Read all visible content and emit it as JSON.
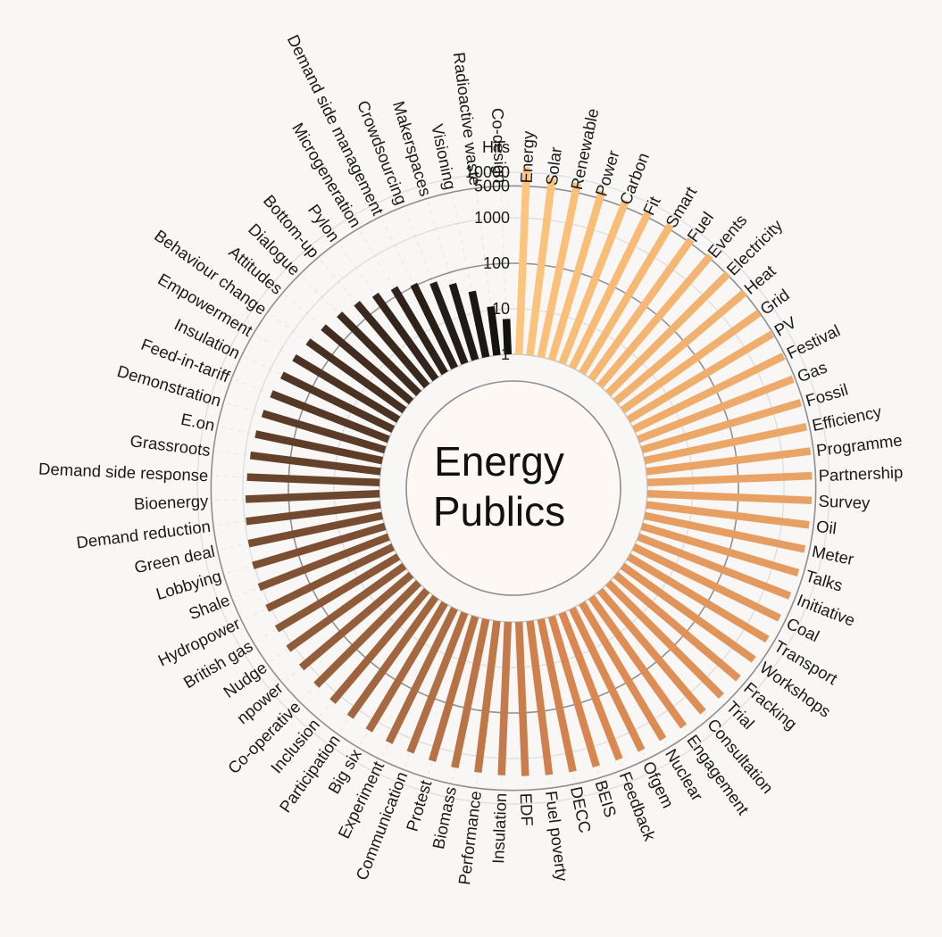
{
  "chart_data": {
    "type": "bar",
    "layout": "radial",
    "title": "Energy Publics",
    "title_lines": [
      "Energy",
      "Publics"
    ],
    "axis_title": "Hits",
    "scale": "log",
    "ylim": [
      1,
      10000
    ],
    "ticks": [
      {
        "value": 1,
        "label": "1"
      },
      {
        "value": 10,
        "label": "10"
      },
      {
        "value": 100,
        "label": "100"
      },
      {
        "value": 1000,
        "label": "1000"
      },
      {
        "value": 5000,
        "label": "5000"
      },
      {
        "value": 10000,
        "label": "10000"
      }
    ],
    "color_start": "#fcc47c",
    "color_mid": "#d98650",
    "color_end": "#111111",
    "categories": [
      "Energy",
      "Solar",
      "Renewable",
      "Power",
      "Carbon",
      "Fit",
      "Smart",
      "Fuel",
      "Events",
      "Electricity",
      "Heat",
      "Grid",
      "PV",
      "Festival",
      "Gas",
      "Fossil",
      "Efficiency",
      "Programme",
      "Partnership",
      "Survey",
      "Oil",
      "Meter",
      "Talks",
      "Initiative",
      "Coal",
      "Transport",
      "Workshops",
      "Fracking",
      "Trial",
      "Consultation",
      "Engagement",
      "Nuclear",
      "Ofgem",
      "Feedback",
      "BEIS",
      "DECC",
      "Fuel poverty",
      "EDF",
      "Insulation",
      "Performance",
      "Biomass",
      "Protest",
      "Communication",
      "Experiment",
      "Big six",
      "Participation",
      "Inclusion",
      "Co-operative",
      "npower",
      "Nudge",
      "British gas",
      "Hydropower",
      "Shale",
      "Lobbying",
      "Green deal",
      "Demand reduction",
      "Bioenergy",
      "Demand side response",
      "Grassroots",
      "E.on",
      "Demonstration",
      "Feed-in-tariff",
      "Insulation",
      "Empowerment",
      "Behaviour change",
      "Attitudes",
      "Dialogue",
      "Bottom-up",
      "Pylon",
      "Microgeneration",
      "Demand side management",
      "Crowdsourcing",
      "Makerspaces",
      "Visioning",
      "Radioactive waste",
      "Co-design"
    ],
    "values": [
      13000,
      8400,
      8000,
      7300,
      6900,
      6400,
      6200,
      5900,
      5600,
      5300,
      5100,
      4900,
      4700,
      4600,
      4500,
      4400,
      4300,
      4300,
      4200,
      4100,
      4000,
      3950,
      3850,
      3750,
      3650,
      3550,
      3500,
      3400,
      3300,
      3200,
      3100,
      3000,
      2950,
      2850,
      2750,
      2650,
      2550,
      2450,
      2350,
      2250,
      2150,
      2050,
      1950,
      1900,
      1800,
      1700,
      1600,
      1520,
      1440,
      1360,
      1280,
      1200,
      1130,
      1060,
      1000,
      940,
      880,
      820,
      760,
      700,
      640,
      580,
      520,
      460,
      400,
      340,
      290,
      240,
      190,
      150,
      110,
      80,
      55,
      30,
      12,
      6
    ]
  }
}
